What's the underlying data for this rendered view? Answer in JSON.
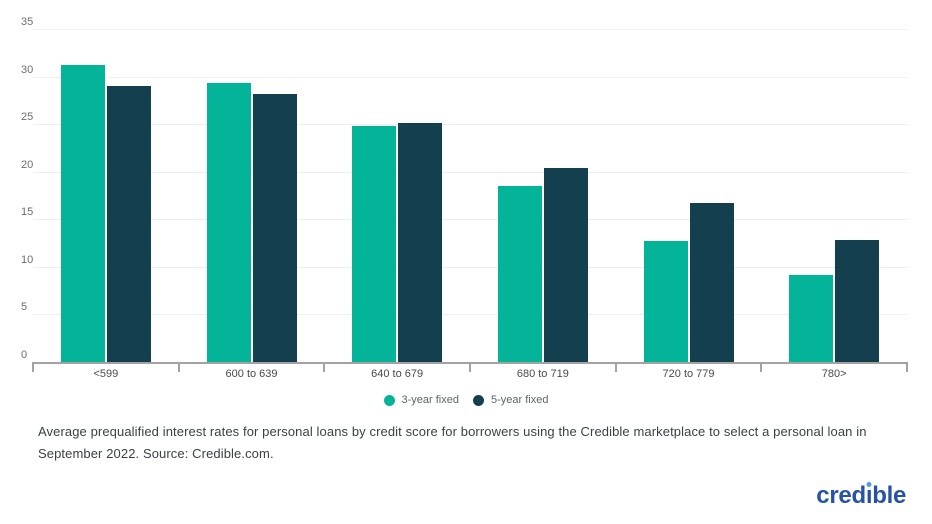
{
  "chart_data": {
    "type": "bar",
    "title": "",
    "xlabel": "",
    "ylabel": "",
    "categories": [
      "<599",
      "600 to 639",
      "640 to 679",
      "680 to 719",
      "720 to 779",
      "780>"
    ],
    "series": [
      {
        "name": "3-year fixed",
        "color": "#04b498",
        "values": [
          31.2,
          29.3,
          24.8,
          18.5,
          12.7,
          9.1
        ]
      },
      {
        "name": "5-year fixed",
        "color": "#143f4f",
        "values": [
          29.0,
          28.2,
          25.1,
          20.4,
          16.7,
          12.8
        ]
      }
    ],
    "ylim": [
      0,
      35
    ],
    "yticks": [
      0,
      5,
      10,
      15,
      20,
      25,
      30,
      35
    ],
    "grid": "horizontal",
    "legend_position": "bottom"
  },
  "caption": {
    "lines": [
      "Average prequalified interest rates for personal loans by credit score for borrowers using the Credible marketplace to select a personal loan in",
      "September 2022. Source: Credible.com."
    ],
    "full_text": "Average prequalified interest rates for personal loans by credit score for borrowers using the Credible marketplace to select a personal loan in September 2022. Source: Credible.com."
  },
  "brand": {
    "logo_text": "credible",
    "logo_color": "#2653a6",
    "logo_dot_color": "#4ba0dd"
  }
}
